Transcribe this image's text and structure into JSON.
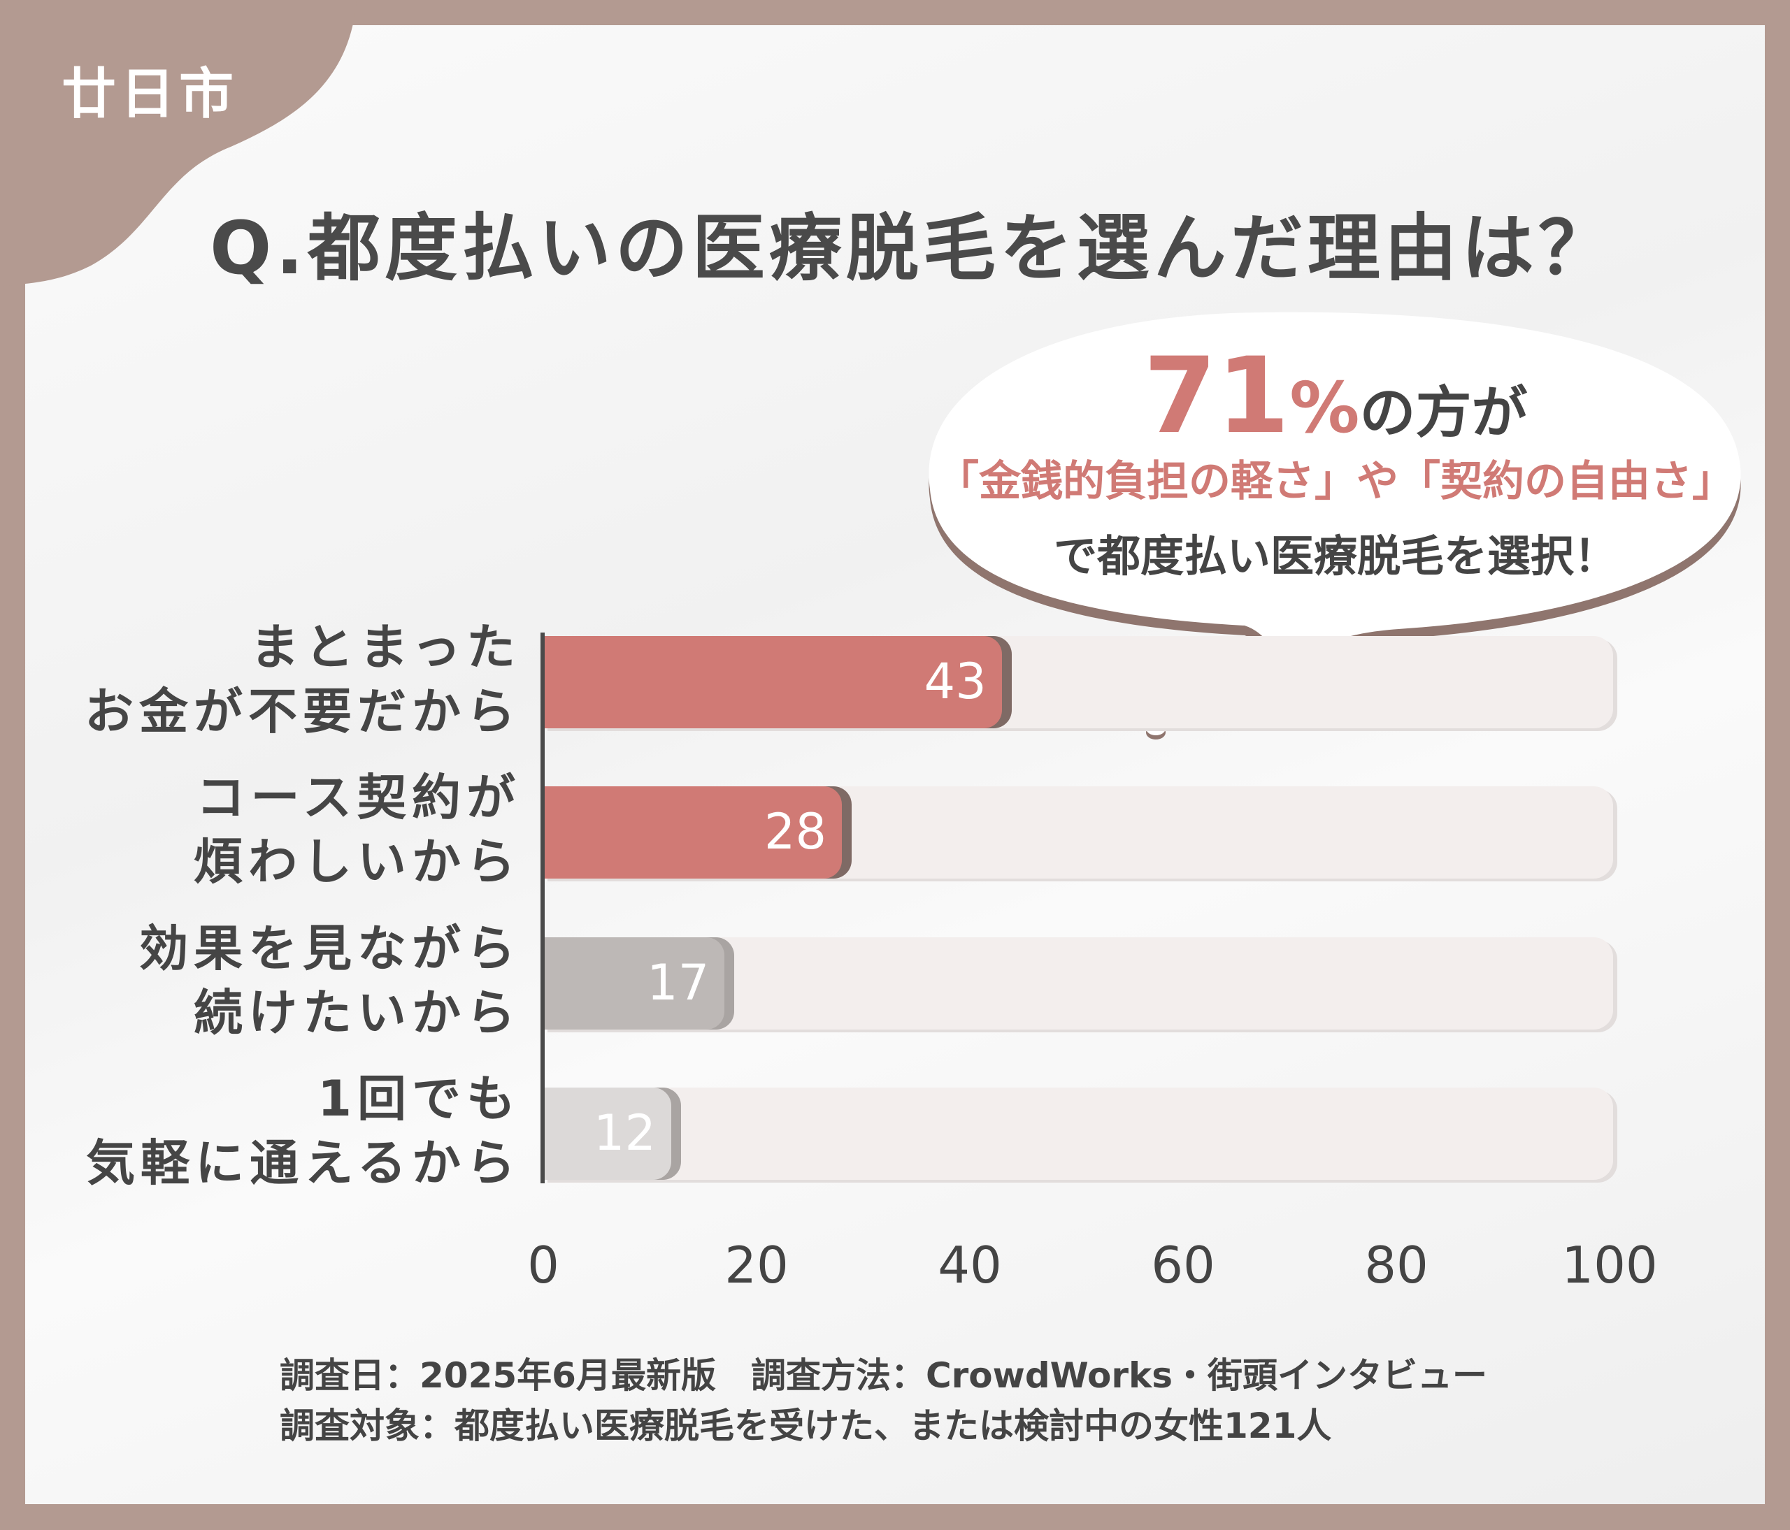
{
  "city": "廿日市",
  "title": "Q.都度払いの医療脱毛を選んだ理由は？",
  "callout": {
    "percent": "71",
    "percent_sign": "%",
    "line1_suffix": "の方が",
    "line2": "「金銭的負担の軽さ」や「契約の自由さ」",
    "line3": "で都度払い医療脱毛を選択！"
  },
  "chart_data": {
    "type": "bar",
    "orientation": "horizontal",
    "categories": [
      [
        "まとまった",
        "お金が不要だから"
      ],
      [
        "コース契約が",
        "煩わしいから"
      ],
      [
        "効果を見ながら",
        "続けたいから"
      ],
      [
        "1回でも",
        "気軽に通えるから"
      ]
    ],
    "values": [
      43,
      28,
      17,
      12
    ],
    "value_labels": [
      "43",
      "28",
      "17",
      "12"
    ],
    "xlim": [
      0,
      100
    ],
    "xticks": [
      "0",
      "20",
      "40",
      "60",
      "80",
      "100"
    ],
    "colors": [
      "#d07a75",
      "#d07a75",
      "#bdb8b6",
      "#dcd9d8"
    ]
  },
  "footer": {
    "line1": "調査日：2025年6月最新版　調査方法：CrowdWorks・街頭インタビュー",
    "line2": "調査対象：都度払い医療脱毛を受けた、または検討中の女性121人"
  }
}
